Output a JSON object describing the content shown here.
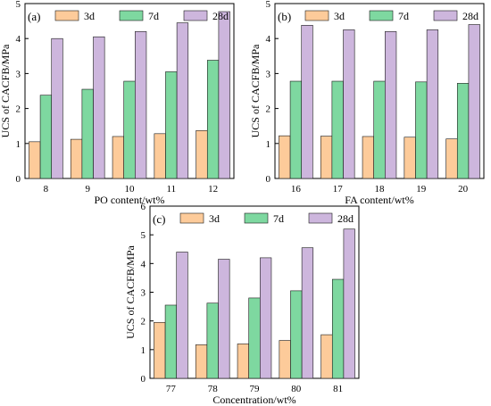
{
  "figure": {
    "background": "#ffffff"
  },
  "colors": {
    "3d": "#FDCB9A",
    "7d": "#7ED8A0",
    "28d": "#CDB6DD",
    "edge": "#1a1a1a"
  },
  "chart_data": [
    {
      "type": "bar",
      "panel_label": "(a)",
      "xlabel": "PO content/wt%",
      "ylabel": "UCS of CACFB/MPa",
      "ylim": [
        0,
        5
      ],
      "yticks": [
        0,
        1,
        2,
        3,
        4,
        5
      ],
      "categories": [
        "8",
        "9",
        "10",
        "11",
        "12"
      ],
      "legend": "top",
      "series": [
        {
          "name": "3d",
          "values": [
            1.05,
            1.12,
            1.2,
            1.28,
            1.37
          ]
        },
        {
          "name": "7d",
          "values": [
            2.38,
            2.55,
            2.78,
            3.05,
            3.38
          ]
        },
        {
          "name": "28d",
          "values": [
            4.0,
            4.05,
            4.2,
            4.45,
            4.77
          ]
        }
      ]
    },
    {
      "type": "bar",
      "panel_label": "(b)",
      "xlabel": "FA content/wt%",
      "ylabel": "UCS of CACFB/MPa",
      "ylim": [
        0,
        5
      ],
      "yticks": [
        0,
        1,
        2,
        3,
        4,
        5
      ],
      "categories": [
        "16",
        "17",
        "18",
        "19",
        "20"
      ],
      "legend": "top",
      "series": [
        {
          "name": "3d",
          "values": [
            1.22,
            1.21,
            1.2,
            1.18,
            1.13
          ]
        },
        {
          "name": "7d",
          "values": [
            2.78,
            2.78,
            2.78,
            2.76,
            2.72
          ]
        },
        {
          "name": "28d",
          "values": [
            4.38,
            4.25,
            4.2,
            4.25,
            4.4
          ]
        }
      ]
    },
    {
      "type": "bar",
      "panel_label": "(c)",
      "xlabel": "Concentration/wt%",
      "ylabel": "UCS of CACFB/MPa",
      "ylim": [
        0,
        6
      ],
      "yticks": [
        0,
        1,
        2,
        3,
        4,
        5,
        6
      ],
      "categories": [
        "77",
        "78",
        "79",
        "80",
        "81"
      ],
      "legend": "top",
      "series": [
        {
          "name": "3d",
          "values": [
            1.95,
            1.17,
            1.2,
            1.32,
            1.52
          ]
        },
        {
          "name": "7d",
          "values": [
            2.55,
            2.62,
            2.8,
            3.05,
            3.45
          ]
        },
        {
          "name": "28d",
          "values": [
            4.4,
            4.15,
            4.2,
            4.55,
            5.2
          ]
        }
      ]
    }
  ]
}
